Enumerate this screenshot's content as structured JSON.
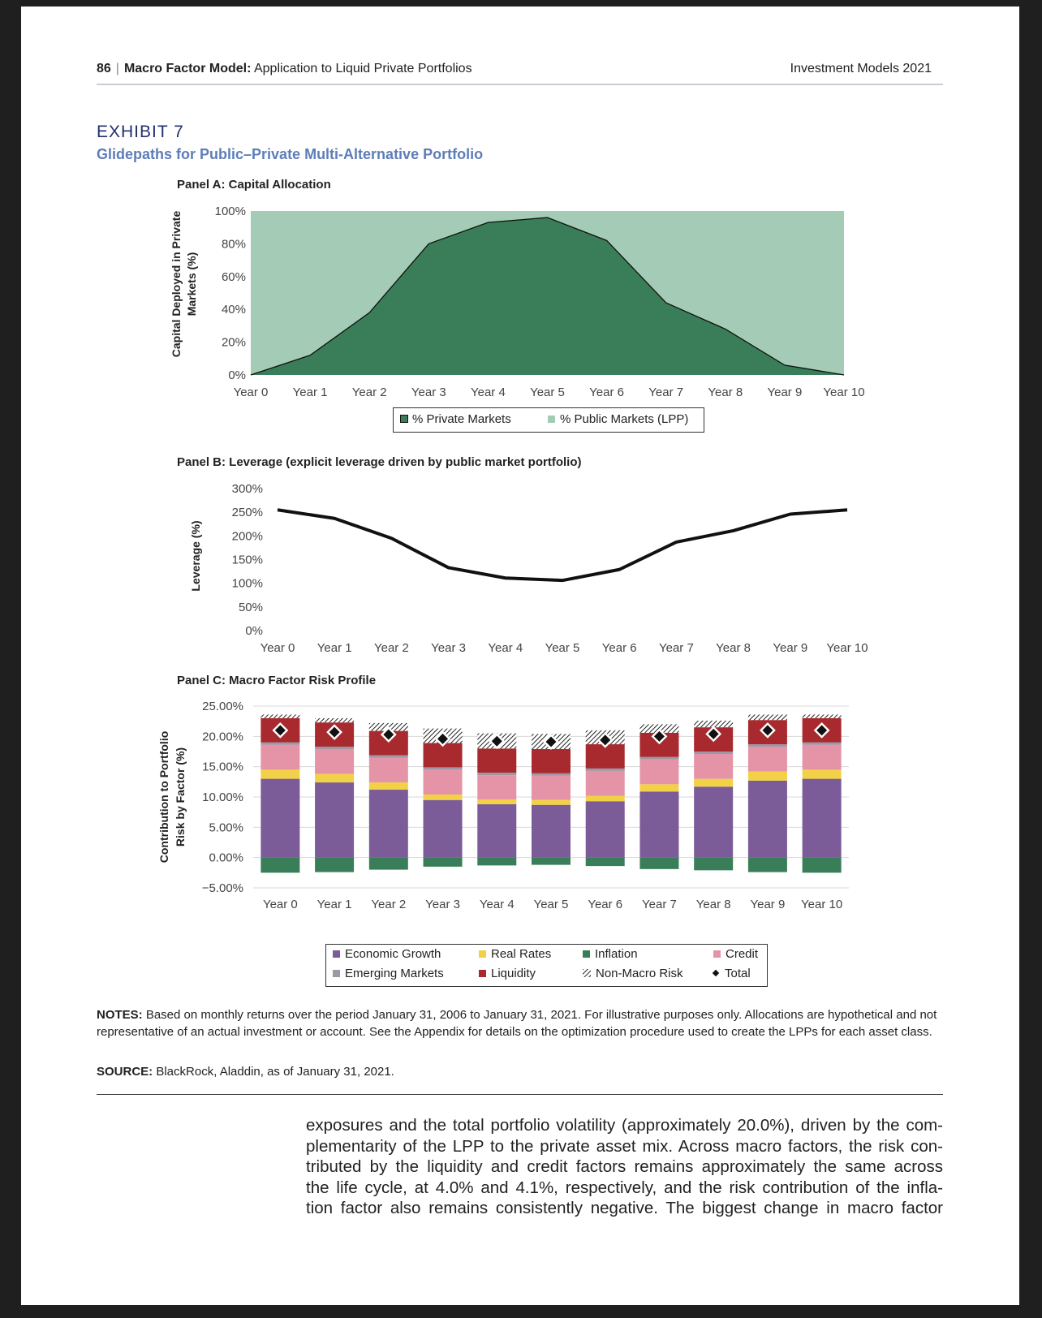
{
  "header": {
    "page_number": "86",
    "separator": "|",
    "title_bold": "Macro Factor Model:",
    "title_rest": "Application to Liquid Private Portfolios",
    "journal": "Investment Models 2021"
  },
  "exhibit": {
    "label": "EXHIBIT 7",
    "title": "Glidepaths for Public–Private Multi-Alternative Portfolio"
  },
  "panel_a": {
    "title": "Panel A: Capital Allocation",
    "ylabel_line1": "Capital Deployed in Private",
    "ylabel_line2": "Markets (%)",
    "yticks": [
      "100%",
      "80%",
      "60%",
      "40%",
      "20%",
      "0%"
    ],
    "legend": {
      "private": "% Private Markets",
      "public": "% Public Markets (LPP)"
    }
  },
  "panel_b": {
    "title": "Panel B: Leverage (explicit leverage driven by public market portfolio)",
    "ylabel": "Leverage (%)",
    "yticks": [
      "300%",
      "250%",
      "200%",
      "150%",
      "100%",
      "50%",
      "0%"
    ]
  },
  "panel_c": {
    "title": "Panel C: Macro Factor Risk Profile",
    "ylabel_line1": "Contribution to Portfolio",
    "ylabel_line2": "Risk by Factor (%)",
    "yticks": [
      "25.00%",
      "20.00%",
      "15.00%",
      "10.00%",
      "5.00%",
      "0.00%",
      "−5.00%"
    ],
    "legend": {
      "economic_growth": "Economic Growth",
      "real_rates": "Real Rates",
      "inflation": "Inflation",
      "credit": "Credit",
      "emerging_markets": "Emerging Markets",
      "liquidity": "Liquidity",
      "non_macro": "Non-Macro Risk",
      "total": "Total"
    }
  },
  "colors": {
    "private_markets": "#3a7e59",
    "public_markets": "#a3cbb5",
    "economic_growth": "#7b5c98",
    "real_rates": "#f2d146",
    "inflation": "#3a7e59",
    "credit": "#e494a6",
    "emerging_markets": "#9d97a6",
    "liquidity": "#a82a2e",
    "heading_blue": "#5e7db8",
    "exhibit_navy": "#23306e"
  },
  "chart_data": [
    {
      "type": "area",
      "title": "Panel A: Capital Allocation",
      "x": [
        "Year 0",
        "Year 1",
        "Year 2",
        "Year 3",
        "Year 4",
        "Year 5",
        "Year 6",
        "Year 7",
        "Year 8",
        "Year 9",
        "Year 10"
      ],
      "ylabel": "Capital Deployed in Private Markets (%)",
      "ylim": [
        0,
        100
      ],
      "series": [
        {
          "name": "% Private Markets",
          "values": [
            0,
            12,
            38,
            80,
            93,
            96,
            82,
            44,
            28,
            6,
            0
          ]
        },
        {
          "name": "% Public Markets (LPP)",
          "values": [
            100,
            88,
            62,
            20,
            7,
            4,
            18,
            56,
            72,
            94,
            100
          ]
        }
      ],
      "legend": "bottom-center",
      "grid": false
    },
    {
      "type": "line",
      "title": "Panel B: Leverage (explicit leverage driven by public market portfolio)",
      "x": [
        "Year 0",
        "Year 1",
        "Year 2",
        "Year 3",
        "Year 4",
        "Year 5",
        "Year 6",
        "Year 7",
        "Year 8",
        "Year 9",
        "Year 10"
      ],
      "ylabel": "Leverage (%)",
      "ylim": [
        0,
        300
      ],
      "series": [
        {
          "values": [
            255,
            237,
            195,
            133,
            111,
            106,
            129,
            187,
            211,
            246,
            255
          ]
        }
      ],
      "grid": false
    },
    {
      "type": "bar",
      "stacked": true,
      "title": "Panel C: Macro Factor Risk Profile",
      "categories": [
        "Year 0",
        "Year 1",
        "Year 2",
        "Year 3",
        "Year 4",
        "Year 5",
        "Year 6",
        "Year 7",
        "Year 8",
        "Year 9",
        "Year 10"
      ],
      "ylabel": "Contribution to Portfolio Risk by Factor (%)",
      "ylim": [
        -5,
        25
      ],
      "grid": true,
      "legend": "bottom-center",
      "series": [
        {
          "name": "Economic Growth",
          "values": [
            13.0,
            12.4,
            11.2,
            9.5,
            8.8,
            8.7,
            9.3,
            10.9,
            11.7,
            12.7,
            13.0
          ]
        },
        {
          "name": "Real Rates",
          "values": [
            1.5,
            1.4,
            1.2,
            0.9,
            0.8,
            0.8,
            0.9,
            1.2,
            1.3,
            1.5,
            1.5
          ]
        },
        {
          "name": "Inflation",
          "values": [
            -2.5,
            -2.4,
            -2.0,
            -1.5,
            -1.3,
            -1.2,
            -1.4,
            -1.9,
            -2.1,
            -2.4,
            -2.5
          ]
        },
        {
          "name": "Credit",
          "values": [
            4.1,
            4.1,
            4.1,
            4.1,
            4.0,
            4.0,
            4.1,
            4.1,
            4.1,
            4.1,
            4.1
          ]
        },
        {
          "name": "Emerging Markets",
          "values": [
            0.4,
            0.4,
            0.4,
            0.4,
            0.4,
            0.4,
            0.4,
            0.4,
            0.4,
            0.4,
            0.4
          ]
        },
        {
          "name": "Liquidity",
          "values": [
            4.0,
            4.0,
            4.0,
            4.0,
            4.0,
            4.0,
            4.0,
            4.0,
            4.0,
            4.0,
            4.0
          ]
        },
        {
          "name": "Non-Macro Risk",
          "values": [
            0.6,
            0.7,
            1.3,
            2.4,
            2.5,
            2.5,
            2.3,
            1.4,
            1.1,
            0.9,
            0.6
          ]
        },
        {
          "name": "Total",
          "values": [
            21.0,
            20.7,
            20.3,
            19.6,
            19.2,
            19.1,
            19.4,
            20.0,
            20.4,
            21.0,
            21.0
          ]
        }
      ]
    }
  ],
  "notes": {
    "label": "NOTES:",
    "text": " Based on monthly returns over the period January 31, 2006 to January 31, 2021. For illustrative purposes only. Allocations are hypothetical and not representative of an actual investment or account. See the Appendix for details on the optimization procedure used to create the LPPs for each asset class."
  },
  "source": {
    "label": "SOURCE:",
    "text": " BlackRock, Aladdin, as of January 31, 2021."
  },
  "body_lines": [
    "exposures and the total portfolio volatility (approximately 20.0%), driven by the com-",
    "plementarity of the LPP to the private asset mix. Across macro factors, the risk con-",
    "tributed by the liquidity and credit factors remains approximately the same across",
    "the life cycle, at 4.0% and 4.1%, respectively, and the risk contribution of the infla-",
    "tion factor also remains consistently negative. The biggest change in macro factor"
  ]
}
